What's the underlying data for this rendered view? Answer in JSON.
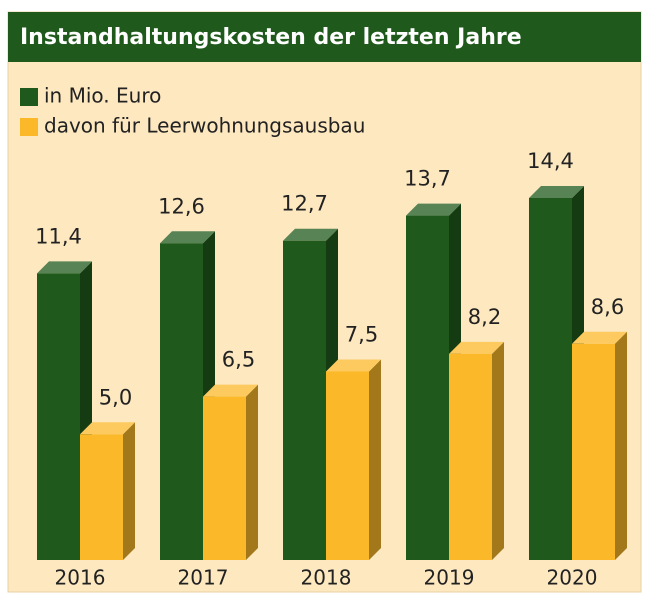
{
  "chart_data": {
    "type": "bar3d",
    "title": "Instandhaltungskosten der letzten Jahre",
    "categories": [
      "2016",
      "2017",
      "2018",
      "2019",
      "2020"
    ],
    "series": [
      {
        "name": "in Mio. Euro",
        "color": "#1f5a1c",
        "values": [
          11.4,
          12.6,
          12.7,
          13.7,
          14.4
        ],
        "value_labels": [
          "11,4",
          "12,6",
          "12,7",
          "13,7",
          "14,4"
        ]
      },
      {
        "name": "davon für Leerwohnungsausbau",
        "color": "#fbb829",
        "values": [
          5.0,
          6.5,
          7.5,
          8.2,
          8.6
        ],
        "value_labels": [
          "5,0",
          "6,5",
          "7,5",
          "8,2",
          "8,6"
        ]
      }
    ]
  }
}
